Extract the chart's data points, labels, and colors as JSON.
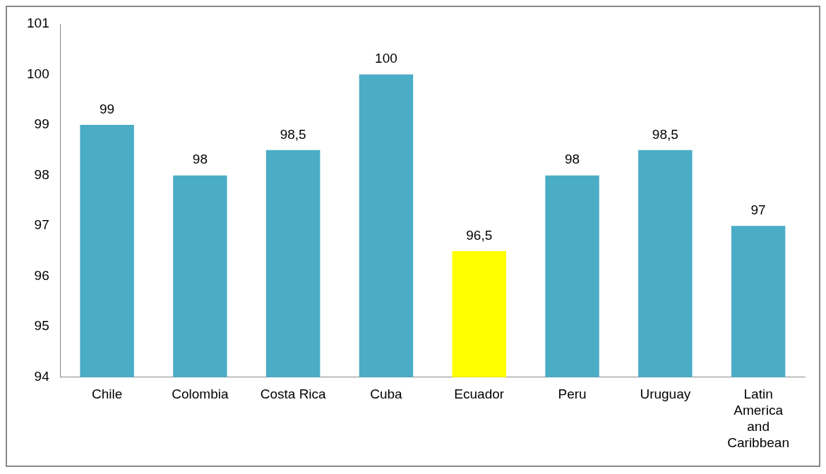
{
  "chart_data": {
    "type": "bar",
    "categories": [
      "Chile",
      "Colombia",
      "Costa Rica",
      "Cuba",
      "Ecuador",
      "Peru",
      "Uruguay",
      "Latin America and Caribbean"
    ],
    "values": [
      99,
      98,
      98.5,
      100,
      96.5,
      98,
      98.5,
      97
    ],
    "colors": [
      "#4bacc6",
      "#4bacc6",
      "#4bacc6",
      "#4bacc6",
      "#ffff00",
      "#4bacc6",
      "#4bacc6",
      "#4bacc6"
    ],
    "value_labels": [
      "99",
      "98",
      "98,5",
      "100",
      "96,5",
      "98",
      "98,5",
      "97"
    ],
    "ylim": [
      94,
      101
    ],
    "yticks": [
      94,
      95,
      96,
      97,
      98,
      99,
      100,
      101
    ],
    "grid": false,
    "legend": false
  }
}
